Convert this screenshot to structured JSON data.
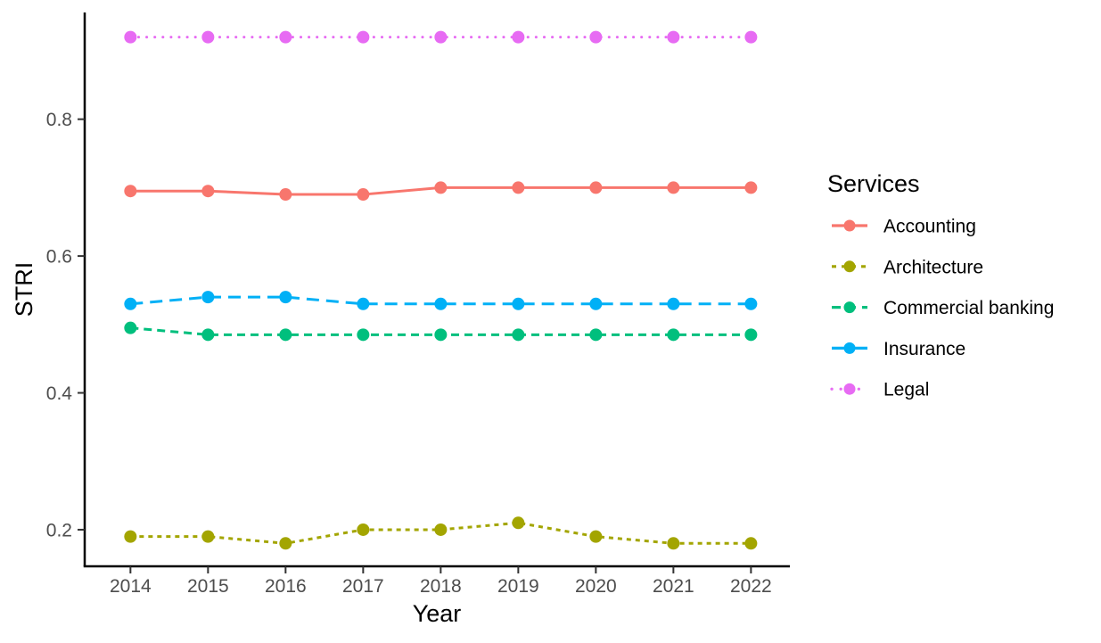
{
  "chart_data": {
    "type": "line",
    "title": "",
    "xlabel": "Year",
    "ylabel": "STRI",
    "legend_title": "Services",
    "legend_position": "right",
    "grid": false,
    "x": [
      2014,
      2015,
      2016,
      2017,
      2018,
      2019,
      2020,
      2021,
      2022
    ],
    "xticks": [
      "2014",
      "2015",
      "2016",
      "2017",
      "2018",
      "2019",
      "2020",
      "2021",
      "2022"
    ],
    "yticks": [
      0.2,
      0.4,
      0.6,
      0.8
    ],
    "ytick_labels": [
      "0.2",
      "0.4",
      "0.6",
      "0.8"
    ],
    "xlim": [
      2013.41,
      2022.49
    ],
    "ylim": [
      0.1465,
      0.956
    ],
    "series": [
      {
        "name": "Accounting",
        "color": "#F8766D",
        "linetype": "solid",
        "values": [
          0.695,
          0.695,
          0.69,
          0.69,
          0.7,
          0.7,
          0.7,
          0.7,
          0.7
        ]
      },
      {
        "name": "Architecture",
        "color": "#A3A500",
        "linetype": "dashed",
        "values": [
          0.19,
          0.19,
          0.18,
          0.2,
          0.2,
          0.21,
          0.19,
          0.18,
          0.18
        ]
      },
      {
        "name": "Commercial banking",
        "color": "#00BF7D",
        "linetype": "dotdash",
        "values": [
          0.495,
          0.485,
          0.485,
          0.485,
          0.485,
          0.485,
          0.485,
          0.485,
          0.485
        ]
      },
      {
        "name": "Insurance",
        "color": "#00B0F6",
        "linetype": "longdash",
        "values": [
          0.53,
          0.54,
          0.54,
          0.53,
          0.53,
          0.53,
          0.53,
          0.53,
          0.53
        ]
      },
      {
        "name": "Legal",
        "color": "#E76BF3",
        "linetype": "dotted",
        "values": [
          0.92,
          0.92,
          0.92,
          0.92,
          0.92,
          0.92,
          0.92,
          0.92,
          0.92
        ]
      }
    ],
    "axis_color": "#000000",
    "tick_color": "#333333",
    "tick_label_color": "#4d4d4d"
  }
}
